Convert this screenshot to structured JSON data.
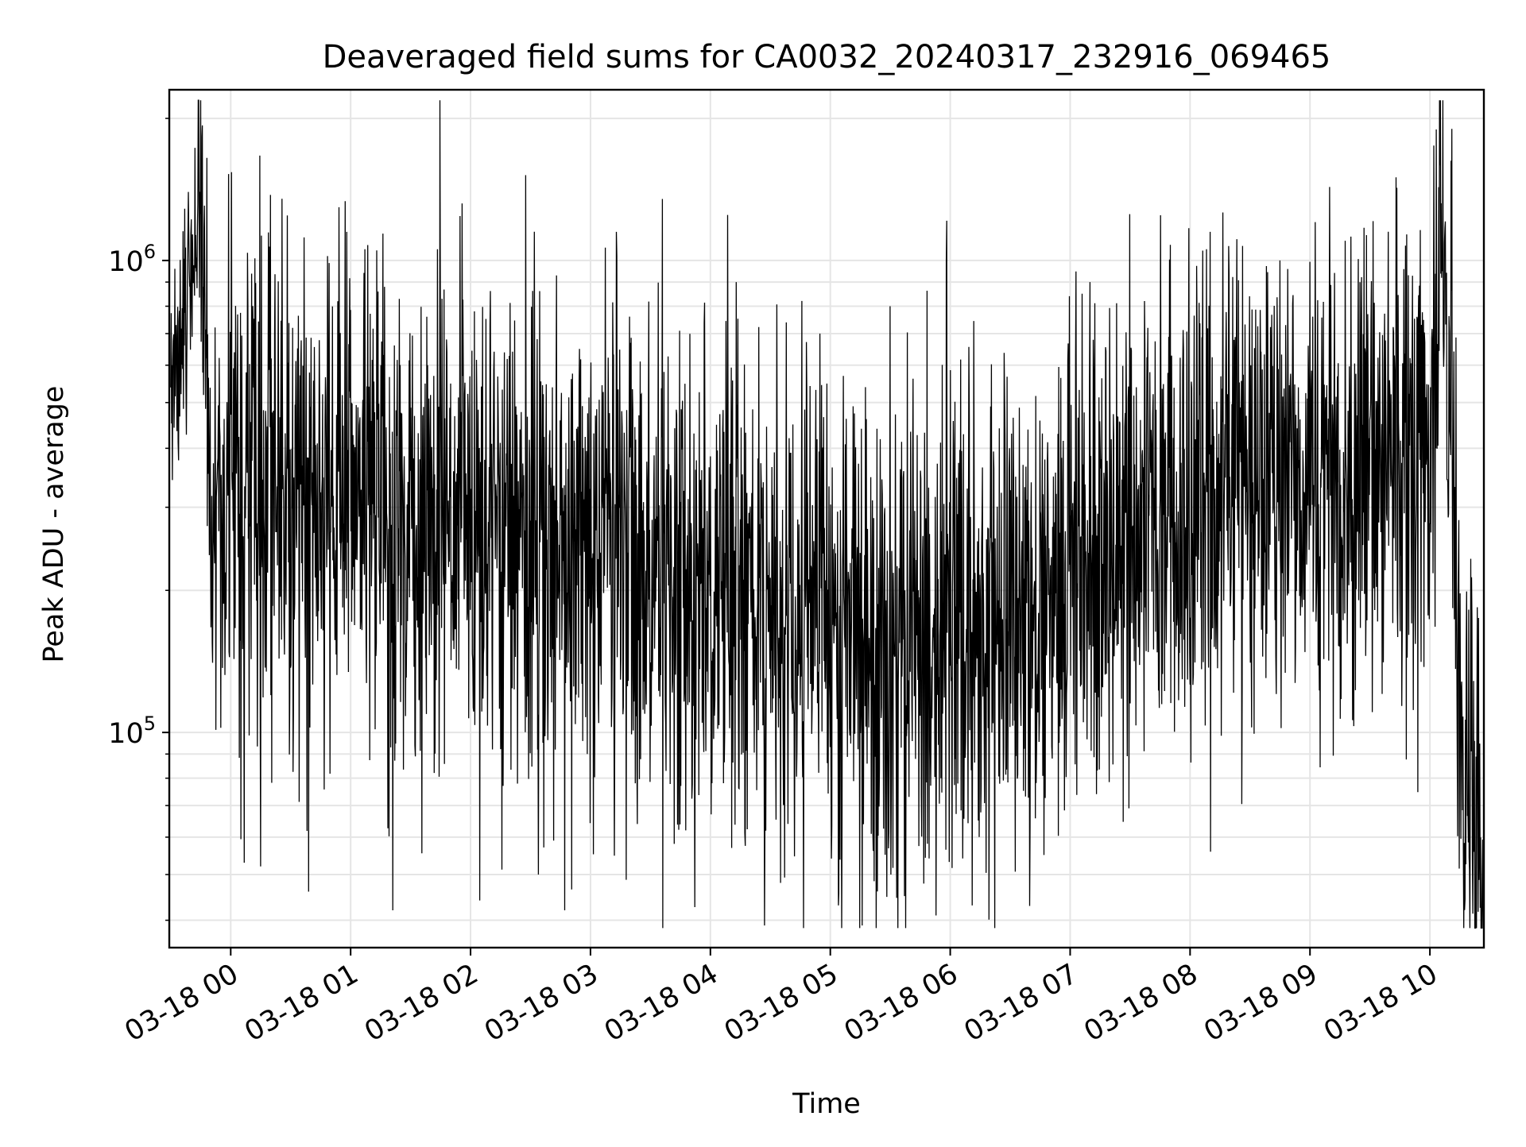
{
  "chart_data": {
    "type": "line",
    "title": "Deaveraged field sums for CA0032_20240317_232916_069465",
    "xlabel": "Time",
    "ylabel": "Peak ADU - average",
    "y_scale": "log",
    "ylim": [
      35000,
      2300000
    ],
    "xlim": [
      "2024-03-17 23:29:16",
      "2024-03-18 10:27:00"
    ],
    "grid": true,
    "line_color": "#000000",
    "grid_color": "#e5e5e5",
    "x_ticks": [
      {
        "label": "03-18 00",
        "time": "2024-03-18 00:00"
      },
      {
        "label": "03-18 01",
        "time": "2024-03-18 01:00"
      },
      {
        "label": "03-18 02",
        "time": "2024-03-18 02:00"
      },
      {
        "label": "03-18 03",
        "time": "2024-03-18 03:00"
      },
      {
        "label": "03-18 04",
        "time": "2024-03-18 04:00"
      },
      {
        "label": "03-18 05",
        "time": "2024-03-18 05:00"
      },
      {
        "label": "03-18 06",
        "time": "2024-03-18 06:00"
      },
      {
        "label": "03-18 07",
        "time": "2024-03-18 07:00"
      },
      {
        "label": "03-18 08",
        "time": "2024-03-18 08:00"
      },
      {
        "label": "03-18 09",
        "time": "2024-03-18 09:00"
      },
      {
        "label": "03-18 10",
        "time": "2024-03-18 10:00"
      }
    ],
    "y_ticks": [
      {
        "base": "10",
        "exp": "5",
        "value": 100000
      },
      {
        "base": "10",
        "exp": "6",
        "value": 1000000
      }
    ],
    "series": [
      {
        "points": [
          [
            "2024-03-17 23:30",
            500000
          ],
          [
            "2024-03-17 23:40",
            900000
          ],
          [
            "2024-03-17 23:45",
            1500000
          ],
          [
            "2024-03-17 23:50",
            250000
          ],
          [
            "2024-03-18 00:00",
            300000
          ],
          [
            "2024-03-18 00:30",
            330000
          ],
          [
            "2024-03-18 01:00",
            320000
          ],
          [
            "2024-03-18 01:30",
            280000
          ],
          [
            "2024-03-18 02:00",
            270000
          ],
          [
            "2024-03-18 02:30",
            250000
          ],
          [
            "2024-03-18 03:00",
            260000
          ],
          [
            "2024-03-18 03:30",
            230000
          ],
          [
            "2024-03-18 04:00",
            200000
          ],
          [
            "2024-03-18 04:30",
            180000
          ],
          [
            "2024-03-18 05:00",
            170000
          ],
          [
            "2024-03-18 05:30",
            160000
          ],
          [
            "2024-03-18 06:00",
            170000
          ],
          [
            "2024-03-18 06:30",
            180000
          ],
          [
            "2024-03-18 07:00",
            210000
          ],
          [
            "2024-03-18 07:30",
            260000
          ],
          [
            "2024-03-18 08:00",
            300000
          ],
          [
            "2024-03-18 08:30",
            340000
          ],
          [
            "2024-03-18 09:00",
            350000
          ],
          [
            "2024-03-18 09:30",
            370000
          ],
          [
            "2024-03-18 10:00",
            420000
          ],
          [
            "2024-03-18 10:05",
            1800000
          ],
          [
            "2024-03-18 10:15",
            120000
          ],
          [
            "2024-03-18 10:27",
            50000
          ]
        ],
        "peak_points": [
          [
            "2024-03-17 23:48",
            1650000
          ],
          [
            "2024-03-18 00:31",
            720000
          ],
          [
            "2024-03-18 00:58",
            1150000
          ],
          [
            "2024-03-18 01:13",
            1050000
          ],
          [
            "2024-03-18 02:02",
            780000
          ],
          [
            "2024-03-18 02:43",
            930000
          ],
          [
            "2024-03-18 03:13",
            1150000
          ],
          [
            "2024-03-18 03:36",
            1350000
          ],
          [
            "2024-03-18 04:13",
            900000
          ],
          [
            "2024-03-18 05:30",
            800000
          ],
          [
            "2024-03-18 05:58",
            1000000
          ],
          [
            "2024-03-18 07:10",
            900000
          ],
          [
            "2024-03-18 08:10",
            1150000
          ],
          [
            "2024-03-18 08:45",
            1000000
          ],
          [
            "2024-03-18 09:43",
            1500000
          ],
          [
            "2024-03-18 10:11",
            1900000
          ]
        ],
        "trough_points": [
          [
            "2024-03-18 00:15",
            52000
          ],
          [
            "2024-03-18 00:39",
            46000
          ],
          [
            "2024-03-18 01:21",
            42000
          ],
          [
            "2024-03-18 02:34",
            50000
          ],
          [
            "2024-03-18 02:47",
            42000
          ],
          [
            "2024-03-18 04:27",
            39000
          ],
          [
            "2024-03-18 04:35",
            48000
          ],
          [
            "2024-03-18 05:04",
            43000
          ],
          [
            "2024-03-18 05:16",
            39000
          ],
          [
            "2024-03-18 05:37",
            45000
          ],
          [
            "2024-03-18 06:11",
            43000
          ],
          [
            "2024-03-18 06:47",
            55000
          ],
          [
            "2024-03-18 10:27",
            45000
          ]
        ]
      }
    ]
  }
}
